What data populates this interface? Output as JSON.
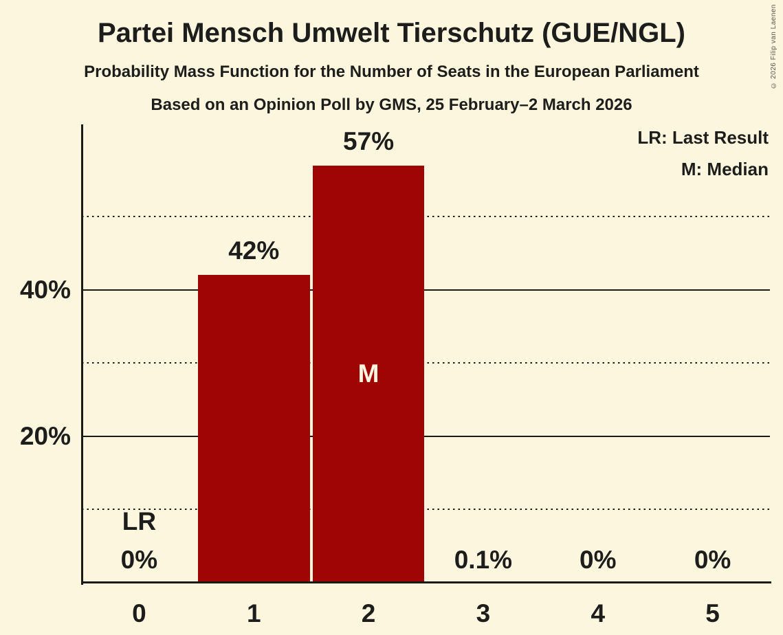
{
  "header": {
    "title": "Partei Mensch Umwelt Tierschutz (GUE/NGL)",
    "subtitle1": "Probability Mass Function for the Number of Seats in the European Parliament",
    "subtitle2": "Based on an Opinion Poll by GMS, 25 February–2 March 2026"
  },
  "copyright": "© 2026 Filip van Laenen",
  "legend": {
    "last_result": "LR: Last Result",
    "median": "M: Median"
  },
  "colors": {
    "background": "#fdf6df",
    "bar": "#a00505",
    "text": "#1d1d1b",
    "axis": "#1a1a14",
    "median_text": "#fdf6df"
  },
  "chart_data": {
    "type": "bar",
    "title": "Partei Mensch Umwelt Tierschutz (GUE/NGL)",
    "categories": [
      "0",
      "1",
      "2",
      "3",
      "4",
      "5"
    ],
    "values": [
      0,
      42,
      57,
      0.1,
      0,
      0
    ],
    "value_labels": [
      "0%",
      "42%",
      "57%",
      "0.1%",
      "0%",
      "0%"
    ],
    "xlabel": "",
    "ylabel": "",
    "ylim": [
      0,
      62.6
    ],
    "solid_gridlines": [
      {
        "value": 20,
        "label": "20%"
      },
      {
        "value": 40,
        "label": "40%"
      }
    ],
    "dotted_gridlines": [
      10,
      30,
      50
    ],
    "annotations": {
      "last_result_index": 0,
      "last_result_label": "LR",
      "median_index": 2,
      "median_label": "M"
    },
    "legend_position": "top-right",
    "grid": "horizontal-only"
  }
}
